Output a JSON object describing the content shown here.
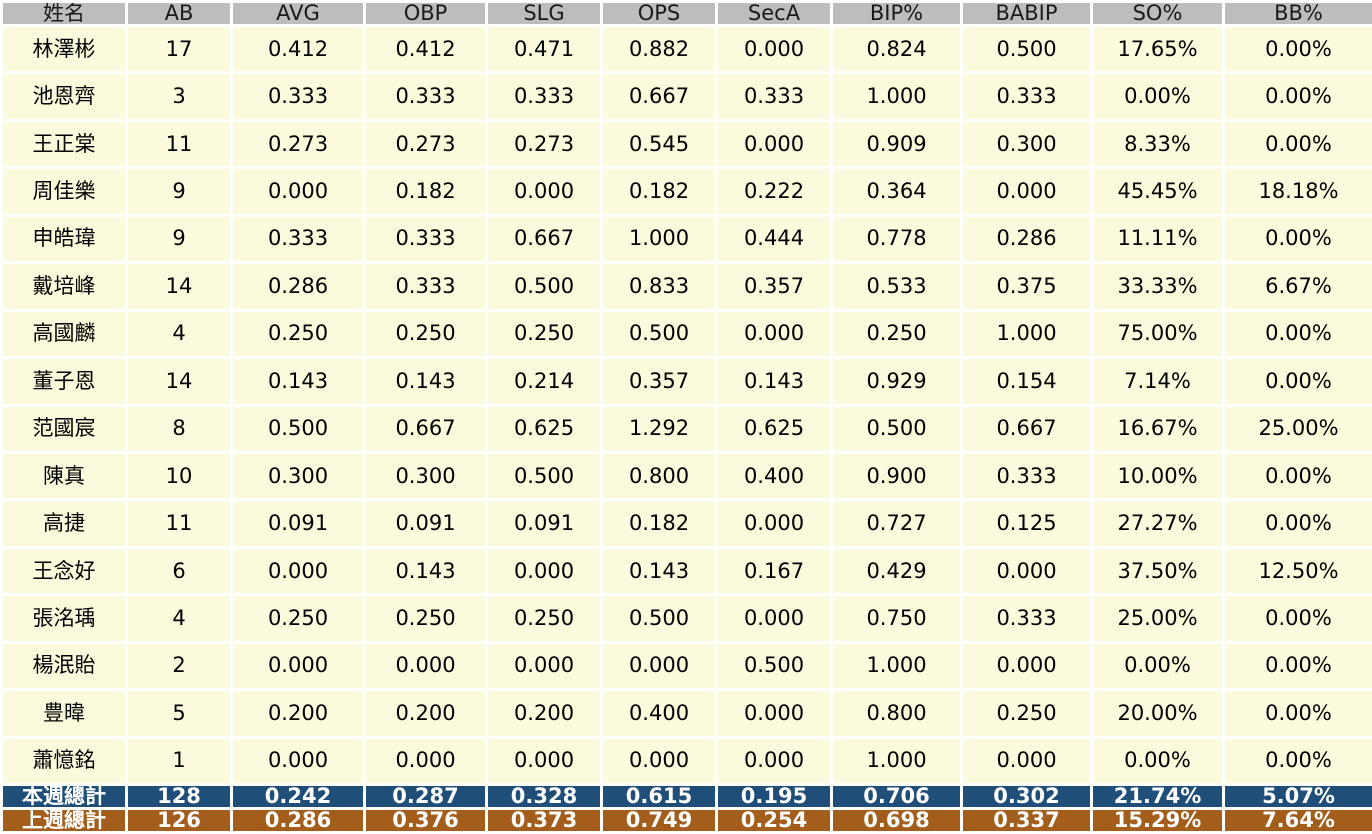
{
  "colors": {
    "header_bg": "#BDBDBD",
    "body_bg": "#FCFADC",
    "grid": "#FFFFFF",
    "total_current_bg": "#1F4E79",
    "total_previous_bg": "#A35E1B",
    "text": "#1A1A1A",
    "total_text": "#FFFFFF"
  },
  "chart_data": {
    "type": "table",
    "columns": [
      "姓名",
      "AB",
      "AVG",
      "OBP",
      "SLG",
      "OPS",
      "SecA",
      "BIP%",
      "BABIP",
      "SO%",
      "BB%"
    ],
    "rows": [
      {
        "name": "林澤彬",
        "values": [
          "17",
          "0.412",
          "0.412",
          "0.471",
          "0.882",
          "0.000",
          "0.824",
          "0.500",
          "17.65%",
          "0.00%"
        ]
      },
      {
        "name": "池恩齊",
        "values": [
          "3",
          "0.333",
          "0.333",
          "0.333",
          "0.667",
          "0.333",
          "1.000",
          "0.333",
          "0.00%",
          "0.00%"
        ]
      },
      {
        "name": "王正棠",
        "values": [
          "11",
          "0.273",
          "0.273",
          "0.273",
          "0.545",
          "0.000",
          "0.909",
          "0.300",
          "8.33%",
          "0.00%"
        ]
      },
      {
        "name": "周佳樂",
        "values": [
          "9",
          "0.000",
          "0.182",
          "0.000",
          "0.182",
          "0.222",
          "0.364",
          "0.000",
          "45.45%",
          "18.18%"
        ]
      },
      {
        "name": "申皓瑋",
        "values": [
          "9",
          "0.333",
          "0.333",
          "0.667",
          "1.000",
          "0.444",
          "0.778",
          "0.286",
          "11.11%",
          "0.00%"
        ]
      },
      {
        "name": "戴培峰",
        "values": [
          "14",
          "0.286",
          "0.333",
          "0.500",
          "0.833",
          "0.357",
          "0.533",
          "0.375",
          "33.33%",
          "6.67%"
        ]
      },
      {
        "name": "高國麟",
        "values": [
          "4",
          "0.250",
          "0.250",
          "0.250",
          "0.500",
          "0.000",
          "0.250",
          "1.000",
          "75.00%",
          "0.00%"
        ]
      },
      {
        "name": "董子恩",
        "values": [
          "14",
          "0.143",
          "0.143",
          "0.214",
          "0.357",
          "0.143",
          "0.929",
          "0.154",
          "7.14%",
          "0.00%"
        ]
      },
      {
        "name": "范國宸",
        "values": [
          "8",
          "0.500",
          "0.667",
          "0.625",
          "1.292",
          "0.625",
          "0.500",
          "0.667",
          "16.67%",
          "25.00%"
        ]
      },
      {
        "name": "陳真",
        "values": [
          "10",
          "0.300",
          "0.300",
          "0.500",
          "0.800",
          "0.400",
          "0.900",
          "0.333",
          "10.00%",
          "0.00%"
        ]
      },
      {
        "name": "高捷",
        "values": [
          "11",
          "0.091",
          "0.091",
          "0.091",
          "0.182",
          "0.000",
          "0.727",
          "0.125",
          "27.27%",
          "0.00%"
        ]
      },
      {
        "name": "王念好",
        "values": [
          "6",
          "0.000",
          "0.143",
          "0.000",
          "0.143",
          "0.167",
          "0.429",
          "0.000",
          "37.50%",
          "12.50%"
        ]
      },
      {
        "name": "張洺瑀",
        "values": [
          "4",
          "0.250",
          "0.250",
          "0.250",
          "0.500",
          "0.000",
          "0.750",
          "0.333",
          "25.00%",
          "0.00%"
        ]
      },
      {
        "name": "楊泯貽",
        "values": [
          "2",
          "0.000",
          "0.000",
          "0.000",
          "0.000",
          "0.500",
          "1.000",
          "0.000",
          "0.00%",
          "0.00%"
        ]
      },
      {
        "name": "豊暐",
        "values": [
          "5",
          "0.200",
          "0.200",
          "0.200",
          "0.400",
          "0.000",
          "0.800",
          "0.250",
          "20.00%",
          "0.00%"
        ]
      },
      {
        "name": "蕭憶銘",
        "values": [
          "1",
          "0.000",
          "0.000",
          "0.000",
          "0.000",
          "0.000",
          "1.000",
          "0.000",
          "0.00%",
          "0.00%"
        ]
      }
    ],
    "totals": [
      {
        "kind": "current",
        "name": "本週總計",
        "values": [
          "128",
          "0.242",
          "0.287",
          "0.328",
          "0.615",
          "0.195",
          "0.706",
          "0.302",
          "21.74%",
          "5.07%"
        ]
      },
      {
        "kind": "previous",
        "name": "上週總計",
        "values": [
          "126",
          "0.286",
          "0.376",
          "0.373",
          "0.749",
          "0.254",
          "0.698",
          "0.337",
          "15.29%",
          "7.64%"
        ]
      }
    ]
  }
}
